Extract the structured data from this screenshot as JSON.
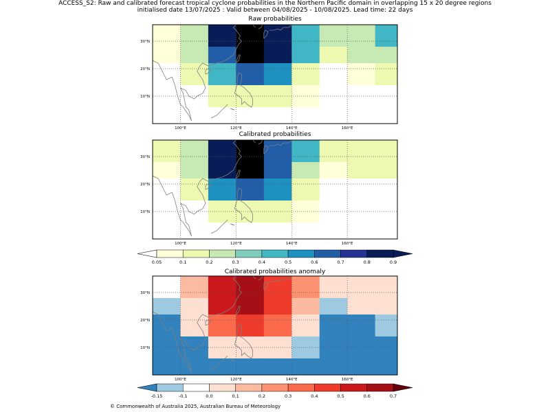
{
  "figure": {
    "title_line1": "ACCESS_S2: Raw and calibrated forecast tropical cyclone probabilities in the Northern Pacific domain in overlapping 15 x 20 degree regions",
    "title_line2": "initialised date 13/07/2025 :  Valid between 04/08/2025 - 10/08/2025. Lead time: 22 days",
    "footer": "© Commonwealth of Australia 2025, Australian Bureau of Meteorology"
  },
  "axes": {
    "lon_ticks": [
      "100°E",
      "120°E",
      "140°E",
      "160°E"
    ],
    "lat_ticks": [
      "30°N",
      "20°N",
      "10°N"
    ]
  },
  "panels": [
    {
      "title": "Raw probabilities",
      "palette": "prob",
      "grid": [
        [
          0,
          2,
          8,
          9,
          8,
          4,
          2,
          2,
          4
        ],
        [
          0,
          2,
          6,
          9,
          8,
          4,
          1,
          2,
          2
        ],
        [
          -1,
          1,
          4,
          6,
          5,
          1,
          -1,
          0,
          1
        ],
        [
          -1,
          -1,
          1,
          1,
          1,
          0,
          -1,
          -1,
          -1
        ]
      ]
    },
    {
      "title": "Calibrated probabilities",
      "palette": "prob",
      "grid": [
        [
          1,
          2,
          8,
          9,
          6,
          4,
          1,
          1,
          1
        ],
        [
          0,
          2,
          8,
          9,
          6,
          2,
          0,
          1,
          1
        ],
        [
          -1,
          1,
          5,
          6,
          5,
          1,
          -1,
          -1,
          -1
        ],
        [
          -1,
          -1,
          1,
          1,
          1,
          0,
          -1,
          -1,
          -1
        ]
      ]
    },
    {
      "title": "Calibrated probabilities anomaly",
      "palette": "anom",
      "grid": [
        [
          2,
          4,
          8,
          9,
          7,
          5,
          3,
          3,
          3
        ],
        [
          1,
          3,
          8,
          9,
          7,
          4,
          1,
          3,
          3
        ],
        [
          0,
          3,
          6,
          7,
          6,
          3,
          0,
          0,
          1
        ],
        [
          0,
          0,
          3,
          3,
          3,
          1,
          0,
          0,
          0
        ],
        [
          0,
          0,
          0,
          0,
          0,
          0,
          0,
          0,
          0
        ]
      ]
    }
  ],
  "colorbars": [
    {
      "labels": [
        "0.05",
        "0.1",
        "0.2",
        "0.3",
        "0.4",
        "0.5",
        "0.6",
        "0.7",
        "0.8",
        "0.9"
      ],
      "colors": [
        "#ffffd9",
        "#edf8b1",
        "#c7e9b4",
        "#7fcdbb",
        "#41b6c4",
        "#1d91c0",
        "#225ea8",
        "#253494",
        "#081d58"
      ],
      "under_color": "#ffffff",
      "over_color": "#081d58"
    },
    {
      "labels": [
        "-0.15",
        "-0.1",
        "0.0",
        "0.1",
        "0.2",
        "0.3",
        "0.4",
        "0.5",
        "0.6",
        "0.7"
      ],
      "colors": [
        "#9ecae1",
        "#ffffff",
        "#fee0d2",
        "#fcbba1",
        "#fc9272",
        "#fb6a4a",
        "#ef3b2c",
        "#cb181d",
        "#a50f15"
      ],
      "under_color": "#3182bd",
      "over_color": "#67000d"
    }
  ]
}
